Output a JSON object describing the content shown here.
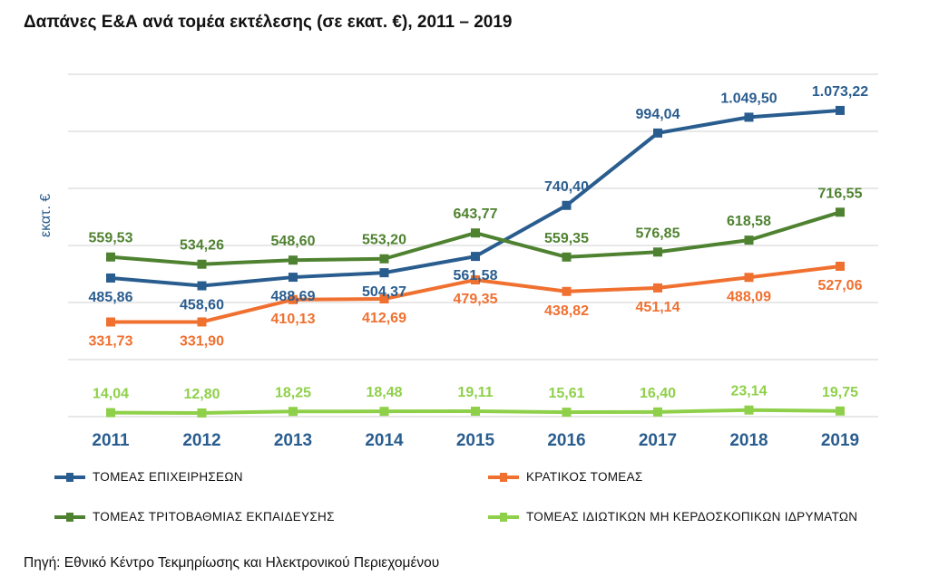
{
  "title": "Δαπάνες Ε&Α ανά τομέα εκτέλεσης (σε εκατ. €), 2011 – 2019",
  "source": "Πηγή: Εθνικό Κέντρο Τεκμηρίωσης και Ηλεκτρονικού Περιεχομένου",
  "chart_data": {
    "type": "line",
    "ylabel": "εκατ. €",
    "ylim": [
      0,
      1200
    ],
    "grid": true,
    "legend_position": "bottom",
    "categories": [
      "2011",
      "2012",
      "2013",
      "2014",
      "2015",
      "2016",
      "2017",
      "2018",
      "2019"
    ],
    "series": [
      {
        "name": "ΤΟΜΕΑΣ ΕΠΙΧΕΙΡΗΣΕΩΝ",
        "color": "#2a5d8f",
        "values": [
          485.86,
          458.6,
          488.69,
          504.37,
          561.58,
          740.4,
          994.04,
          1049.5,
          1073.22
        ],
        "labels": [
          "485,86",
          "458,60",
          "488,69",
          "504,37",
          "561,58",
          "740,40",
          "994,04",
          "1.049,50",
          "1.073,22"
        ],
        "label_side": [
          "below",
          "below",
          "below",
          "below",
          "below",
          "above",
          "above",
          "above",
          "above"
        ]
      },
      {
        "name": "ΚΡΑΤΙΚΟΣ ΤΟΜΕΑΣ",
        "color": "#f07030",
        "values": [
          331.73,
          331.9,
          410.13,
          412.69,
          479.35,
          438.82,
          451.14,
          488.09,
          527.06
        ],
        "labels": [
          "331,73",
          "331,90",
          "410,13",
          "412,69",
          "479,35",
          "438,82",
          "451,14",
          "488,09",
          "527,06"
        ],
        "label_side": [
          "below",
          "below",
          "below",
          "below",
          "below",
          "below",
          "below",
          "below",
          "below"
        ]
      },
      {
        "name": "ΤΟΜΕΑΣ ΤΡΙΤΟΒΑΘΜΙΑΣ ΕΚΠΑΙΔΕΥΣΗΣ",
        "color": "#4f8230",
        "values": [
          559.53,
          534.26,
          548.6,
          553.2,
          643.77,
          559.35,
          576.85,
          618.58,
          716.55
        ],
        "labels": [
          "559,53",
          "534,26",
          "548,60",
          "553,20",
          "643,77",
          "559,35",
          "576,85",
          "618,58",
          "716,55"
        ],
        "label_side": [
          "above",
          "above",
          "above",
          "above",
          "above",
          "above",
          "above",
          "above",
          "above"
        ]
      },
      {
        "name": "ΤΟΜΕΑΣ ΙΔΙΩΤΙΚΩΝ ΜΗ ΚΕΡΔΟΣΚΟΠΙΚΩΝ ΙΔΡΥΜΑΤΩΝ",
        "color": "#8fd04a",
        "values": [
          14.04,
          12.8,
          18.25,
          18.48,
          19.11,
          15.61,
          16.4,
          23.14,
          19.75
        ],
        "labels": [
          "14,04",
          "12,80",
          "18,25",
          "18,48",
          "19,11",
          "15,61",
          "16,40",
          "23,14",
          "19,75"
        ],
        "label_side": [
          "above",
          "above",
          "above",
          "above",
          "above",
          "above",
          "above",
          "above",
          "above"
        ]
      }
    ]
  }
}
